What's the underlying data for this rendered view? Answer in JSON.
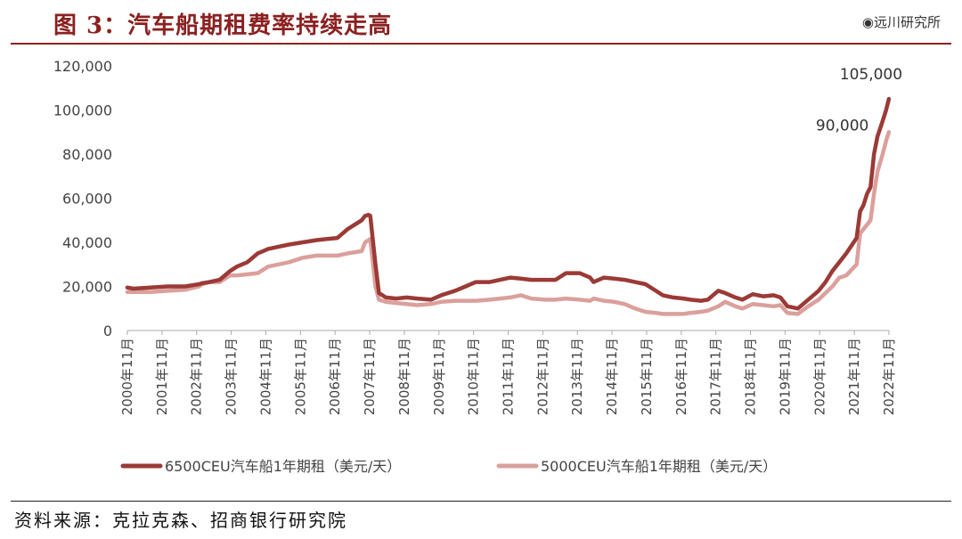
{
  "header": {
    "title": "图 3：汽车船期租费率持续走高",
    "brand": "◉远川研究所"
  },
  "footer": {
    "source": "资料来源：克拉克森、招商银行研究院"
  },
  "colors": {
    "title": "#8b2020",
    "series_6500": "#9b3a36",
    "series_5000": "#dba09c"
  },
  "chart_data": {
    "type": "line",
    "title": "",
    "xlabel": "",
    "ylabel": "",
    "ylim": [
      0,
      120000
    ],
    "yticks": [
      0,
      20000,
      40000,
      60000,
      80000,
      100000,
      120000
    ],
    "ytick_labels": [
      "0",
      "20,000",
      "40,000",
      "60,000",
      "80,000",
      "100,000",
      "120,000"
    ],
    "x_range": [
      2000.833,
      2022.833
    ],
    "x_tick_labels": [
      "2000年11月",
      "2001年11月",
      "2002年11月",
      "2003年11月",
      "2004年11月",
      "2005年11月",
      "2006年11月",
      "2007年11月",
      "2008年11月",
      "2009年11月",
      "2010年11月",
      "2011年11月",
      "2012年11月",
      "2013年11月",
      "2014年11月",
      "2015年11月",
      "2016年11月",
      "2017年11月",
      "2018年11月",
      "2019年11月",
      "2020年11月",
      "2021年11月",
      "2022年11月"
    ],
    "grid": false,
    "legend_position": "bottom",
    "annotations": [
      {
        "text": "105,000",
        "x": 2022.75,
        "y": 105000
      },
      {
        "text": "90,000",
        "x": 2022.83,
        "y": 90000
      }
    ],
    "series": [
      {
        "name": "6500CEU汽车船1年期租（美元/天）",
        "color": "#9b3a36",
        "x": [
          2000.83,
          2001.0,
          2001.5,
          2002.0,
          2002.5,
          2002.9,
          2003.0,
          2003.2,
          2003.5,
          2003.8,
          2004.0,
          2004.3,
          2004.6,
          2004.9,
          2005.2,
          2005.5,
          2005.9,
          2006.3,
          2006.6,
          2006.9,
          2007.2,
          2007.4,
          2007.6,
          2007.7,
          2007.8,
          2007.85,
          2008.0,
          2008.1,
          2008.3,
          2008.6,
          2008.9,
          2009.2,
          2009.6,
          2009.9,
          2010.3,
          2010.6,
          2010.9,
          2011.3,
          2011.6,
          2011.9,
          2012.2,
          2012.5,
          2012.9,
          2013.2,
          2013.5,
          2013.9,
          2014.2,
          2014.3,
          2014.6,
          2014.9,
          2015.2,
          2015.5,
          2015.8,
          2016.1,
          2016.3,
          2016.6,
          2016.9,
          2017.1,
          2017.4,
          2017.6,
          2017.9,
          2018.1,
          2018.4,
          2018.6,
          2018.9,
          2019.2,
          2019.5,
          2019.7,
          2019.9,
          2020.2,
          2020.5,
          2020.8,
          2021.0,
          2021.2,
          2021.4,
          2021.6,
          2021.9,
          2022.0,
          2022.1,
          2022.2,
          2022.3,
          2022.4,
          2022.5,
          2022.65,
          2022.75,
          2022.83
        ],
        "values": [
          19500,
          19000,
          19500,
          20000,
          20000,
          21000,
          21500,
          22000,
          23000,
          27000,
          29000,
          31000,
          35000,
          37000,
          38000,
          39000,
          40000,
          41000,
          41500,
          42000,
          46000,
          48000,
          50000,
          52000,
          52500,
          52000,
          30000,
          17000,
          15000,
          14500,
          15000,
          14500,
          14000,
          16000,
          18000,
          20000,
          22000,
          22000,
          23000,
          24000,
          23500,
          23000,
          23000,
          23000,
          26000,
          26000,
          24000,
          22000,
          24000,
          23500,
          23000,
          22000,
          21000,
          18000,
          16000,
          15000,
          14500,
          14000,
          13500,
          14000,
          18000,
          17000,
          15000,
          14000,
          16500,
          15500,
          16000,
          15000,
          11000,
          10000,
          14000,
          18000,
          22000,
          27000,
          31000,
          35000,
          42000,
          54000,
          57000,
          62000,
          65000,
          80000,
          88000,
          95000,
          100000,
          105000
        ]
      },
      {
        "name": "5000CEU汽车船1年期租（美元/天）",
        "color": "#dba09c",
        "x": [
          2000.83,
          2001.0,
          2001.5,
          2002.0,
          2002.5,
          2002.9,
          2003.0,
          2003.2,
          2003.5,
          2003.8,
          2004.0,
          2004.3,
          2004.6,
          2004.9,
          2005.2,
          2005.5,
          2005.9,
          2006.3,
          2006.6,
          2006.9,
          2007.2,
          2007.4,
          2007.6,
          2007.7,
          2007.8,
          2007.85,
          2008.0,
          2008.1,
          2008.3,
          2008.6,
          2008.9,
          2009.2,
          2009.6,
          2009.9,
          2010.3,
          2010.6,
          2010.9,
          2011.3,
          2011.6,
          2011.9,
          2012.2,
          2012.5,
          2012.9,
          2013.2,
          2013.5,
          2013.9,
          2014.2,
          2014.3,
          2014.6,
          2014.9,
          2015.2,
          2015.5,
          2015.8,
          2016.1,
          2016.3,
          2016.6,
          2016.9,
          2017.1,
          2017.4,
          2017.6,
          2017.9,
          2018.1,
          2018.4,
          2018.6,
          2018.9,
          2019.2,
          2019.5,
          2019.7,
          2019.9,
          2020.2,
          2020.5,
          2020.8,
          2021.0,
          2021.2,
          2021.4,
          2021.6,
          2021.9,
          2022.0,
          2022.1,
          2022.2,
          2022.3,
          2022.4,
          2022.5,
          2022.65,
          2022.75,
          2022.83
        ],
        "values": [
          17500,
          17500,
          17500,
          18000,
          18500,
          20000,
          21000,
          22000,
          22000,
          25000,
          25000,
          25500,
          26000,
          29000,
          30000,
          31000,
          33000,
          34000,
          34000,
          34000,
          35000,
          35500,
          36000,
          40000,
          41000,
          41500,
          20000,
          14000,
          13000,
          12500,
          12000,
          11500,
          12000,
          13000,
          13500,
          13500,
          13500,
          14000,
          14500,
          15000,
          16000,
          14500,
          14000,
          14000,
          14500,
          14000,
          13500,
          14500,
          13500,
          13000,
          12000,
          10000,
          8500,
          8000,
          7500,
          7500,
          7500,
          8000,
          8500,
          9000,
          11000,
          13000,
          11000,
          10000,
          12000,
          11500,
          11000,
          11500,
          8000,
          7500,
          11000,
          14000,
          17000,
          20000,
          24000,
          25000,
          30000,
          44000,
          46000,
          48000,
          50000,
          62000,
          72000,
          80000,
          86000,
          90000
        ]
      }
    ]
  }
}
